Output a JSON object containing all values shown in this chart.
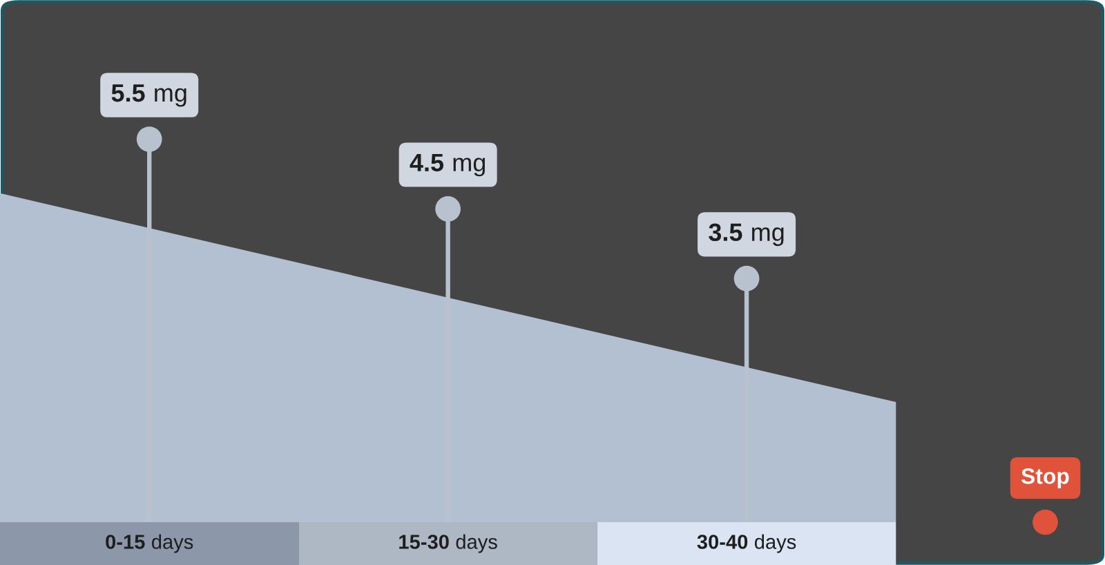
{
  "chart_data": {
    "type": "lollipop",
    "categories": [
      "0-15 days",
      "15-30 days",
      "30-40 days",
      null
    ],
    "values": [
      5.5,
      4.5,
      3.5,
      0
    ],
    "value_labels": [
      "5.5 mg",
      "4.5 mg",
      "3.5 mg",
      "Stop"
    ],
    "colors": [
      "#b8c2cf",
      "#b8c2cf",
      "#b8c2cf",
      "#e0533a"
    ],
    "ylim": [
      0,
      7.5
    ],
    "tick_labels": "x"
  }
}
